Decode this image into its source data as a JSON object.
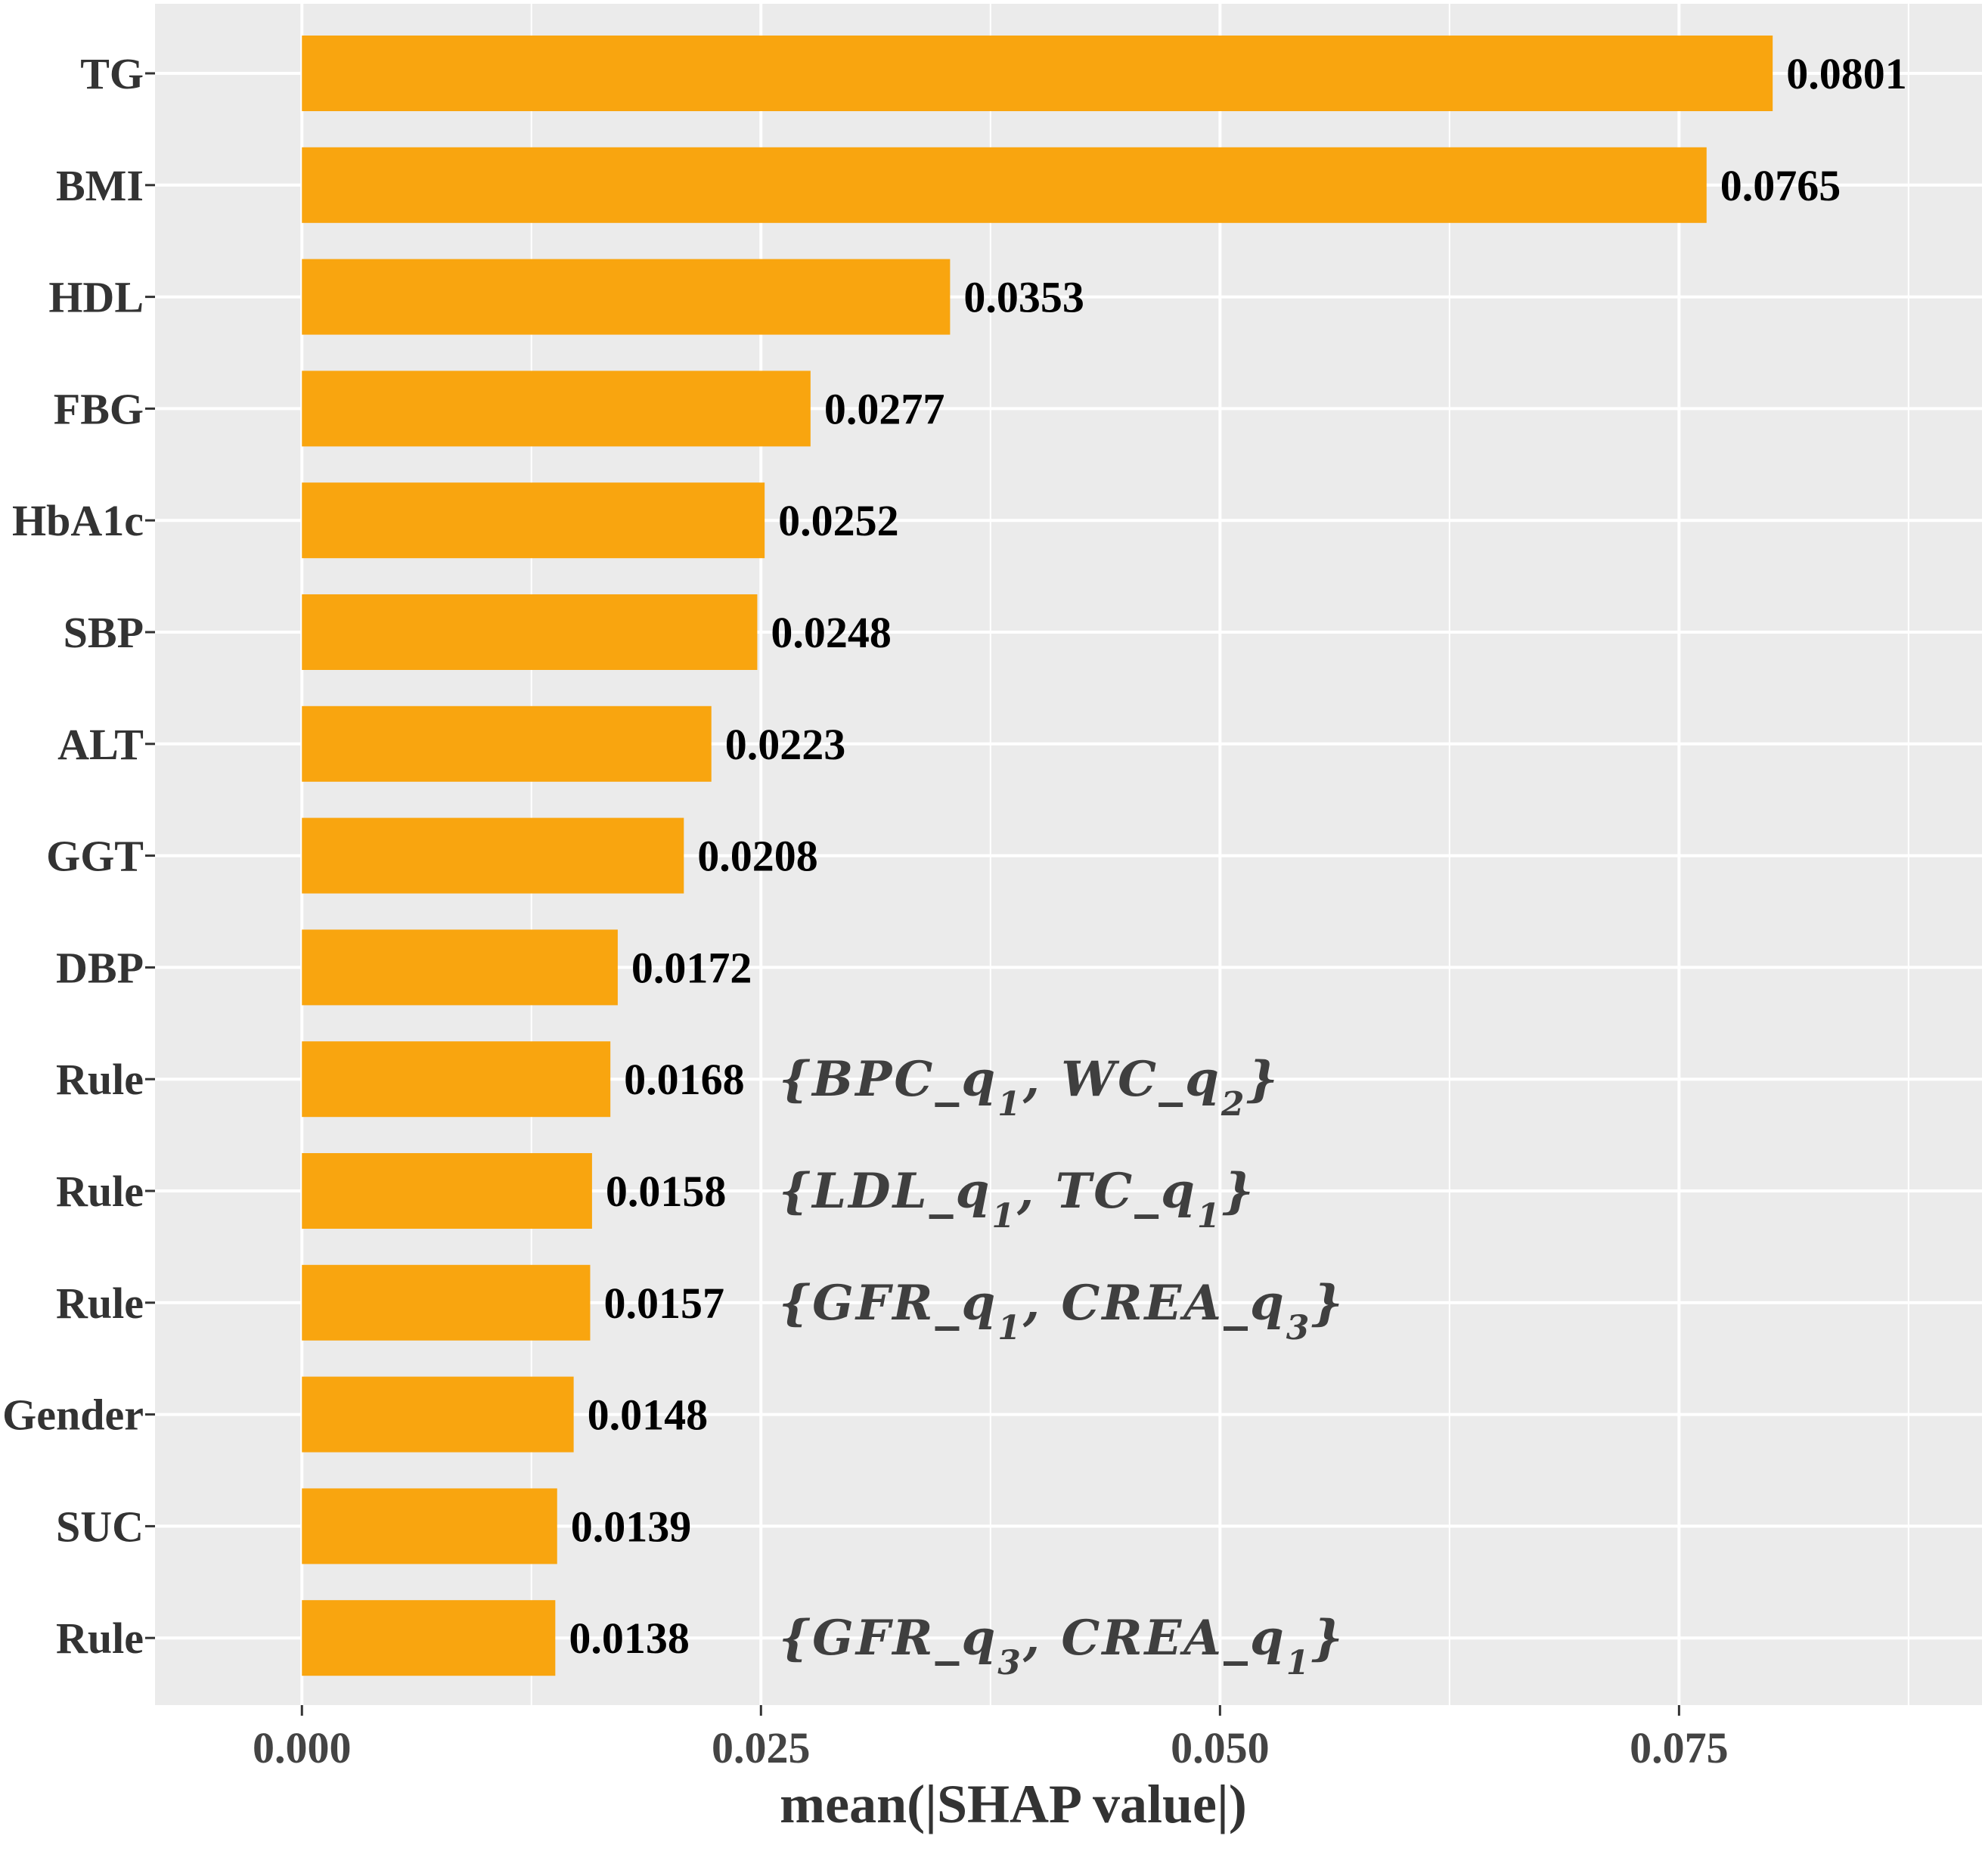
{
  "chart_data": {
    "type": "bar",
    "orientation": "horizontal",
    "title": "",
    "xlabel": "mean(|SHAP value|)",
    "ylabel": "",
    "xlim": [
      -0.008,
      0.0915
    ],
    "xticks": [
      "0.000",
      "0.025",
      "0.050",
      "0.075"
    ],
    "grid": true,
    "background": "#ebebeb",
    "bar_color": "#f9a50f",
    "bars": [
      {
        "category": "TG",
        "value": 0.0801,
        "label": "0.0801",
        "annotation": ""
      },
      {
        "category": "BMI",
        "value": 0.0765,
        "label": "0.0765",
        "annotation": ""
      },
      {
        "category": "HDL",
        "value": 0.0353,
        "label": "0.0353",
        "annotation": ""
      },
      {
        "category": "FBG",
        "value": 0.0277,
        "label": "0.0277",
        "annotation": ""
      },
      {
        "category": "HbA1c",
        "value": 0.0252,
        "label": "0.0252",
        "annotation": ""
      },
      {
        "category": "SBP",
        "value": 0.0248,
        "label": "0.0248",
        "annotation": ""
      },
      {
        "category": "ALT",
        "value": 0.0223,
        "label": "0.0223",
        "annotation": ""
      },
      {
        "category": "GGT",
        "value": 0.0208,
        "label": "0.0208",
        "annotation": ""
      },
      {
        "category": "DBP",
        "value": 0.0172,
        "label": "0.0172",
        "annotation": ""
      },
      {
        "category": "Rule",
        "value": 0.0168,
        "label": "0.0168",
        "annotation": "{BPC_q1, WC_q2}"
      },
      {
        "category": "Rule",
        "value": 0.0158,
        "label": "0.0158",
        "annotation": "{LDL_q1, TC_q1}"
      },
      {
        "category": "Rule",
        "value": 0.0157,
        "label": "0.0157",
        "annotation": "{GFR_q1, CREA_q3}"
      },
      {
        "category": "Gender",
        "value": 0.0148,
        "label": "0.0148",
        "annotation": ""
      },
      {
        "category": "SUC",
        "value": 0.0139,
        "label": "0.0139",
        "annotation": ""
      },
      {
        "category": "Rule",
        "value": 0.0138,
        "label": "0.0138",
        "annotation": "{GFR_q3, CREA_q1}"
      }
    ]
  }
}
